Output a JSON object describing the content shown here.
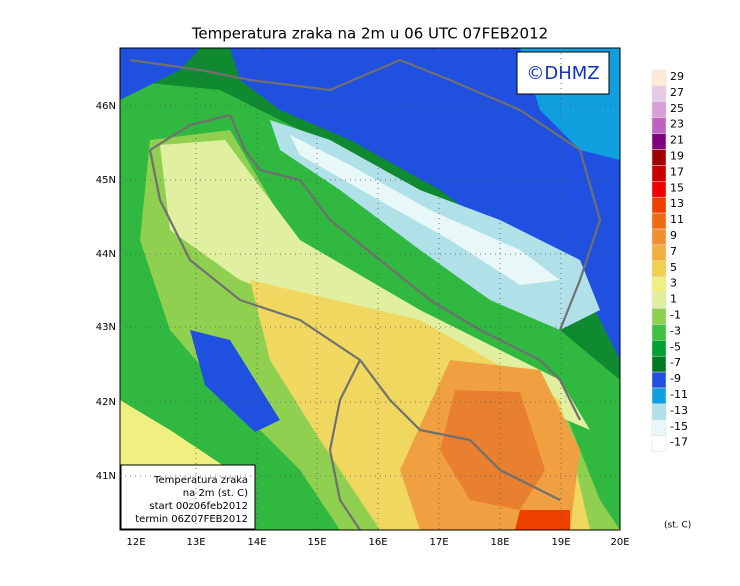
{
  "title": "Temperatura zraka na 2m u 06 UTC 07FEB2012",
  "logo": "©DHMZ",
  "map": {
    "lat_labels": [
      "46N",
      "45N",
      "44N",
      "43N",
      "42N",
      "41N"
    ],
    "lon_labels": [
      "12E",
      "13E",
      "14E",
      "15E",
      "16E",
      "17E",
      "18E",
      "19E",
      "20E"
    ]
  },
  "info_box": [
    "Temperatura zraka",
    "na 2m (st. C)",
    "start 00z06feb2012",
    "termin 06Z07FEB2012"
  ],
  "legend": {
    "levels": [
      29,
      27,
      25,
      23,
      21,
      19,
      17,
      15,
      13,
      11,
      9,
      7,
      5,
      3,
      1,
      -1,
      -3,
      -5,
      -7,
      -9,
      -11,
      -13,
      -15,
      -17
    ],
    "colors": [
      "#fdebd9",
      "#e4cce4",
      "#d8a0d8",
      "#c060c0",
      "#800080",
      "#a00000",
      "#c80000",
      "#f00000",
      "#f04000",
      "#f06a10",
      "#f09030",
      "#f0b040",
      "#f0d050",
      "#f0f080",
      "#e0f0a0",
      "#90d050",
      "#40c040",
      "#00a030",
      "#007a20",
      "#2050e0",
      "#10a0e0",
      "#b0e0e8",
      "#e8f8f8",
      "#ffffff"
    ],
    "unit": "(st. C)"
  }
}
